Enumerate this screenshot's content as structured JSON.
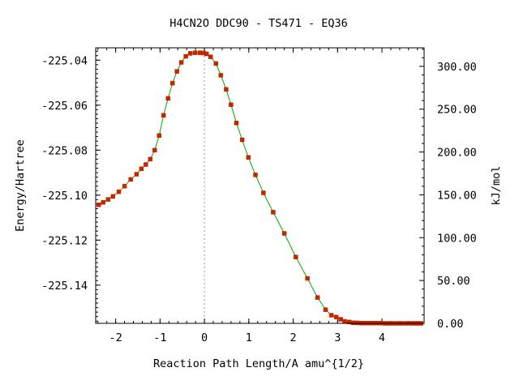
{
  "chart_data": {
    "type": "line",
    "title": "H4CN2O   DDC90 - TS471 - EQ36",
    "xlabel": "Reaction Path Length/A amu^{1/2}",
    "ylabel": "Energy/Hartree",
    "y2label": "kJ/mol",
    "xlim": [
      -2.45,
      4.95
    ],
    "ylim": [
      -225.157,
      -225.0345
    ],
    "y2lim": [
      0.0,
      321.6
    ],
    "xticks": [
      -2,
      -1,
      0,
      1,
      2,
      3,
      4
    ],
    "xtick_labels": [
      "-2",
      "-1",
      "0",
      "1",
      "2",
      "3",
      "4"
    ],
    "yticks": [
      -225.04,
      -225.06,
      -225.08,
      -225.1,
      -225.12,
      -225.14
    ],
    "ytick_labels": [
      "-225.04",
      "-225.06",
      "-225.08",
      "-225.10",
      "-225.12",
      "-225.14"
    ],
    "y2ticks": [
      0,
      50,
      100,
      150,
      200,
      250,
      300
    ],
    "y2tick_labels": [
      "0.00",
      "50.00",
      "100.00",
      "150.00",
      "200.00",
      "250.00",
      "300.00"
    ],
    "grid": false,
    "reference_line_x": 0,
    "colors": {
      "line": "#00aa00",
      "marker": "#cc2200",
      "reference": "#999999",
      "axis": "#000000"
    },
    "series": [
      {
        "x": [
          -2.38,
          -2.28,
          -2.17,
          -2.06,
          -1.93,
          -1.8,
          -1.66,
          -1.53,
          -1.42,
          -1.32,
          -1.22,
          -1.12,
          -1.02,
          -0.92,
          -0.82,
          -0.72,
          -0.62,
          -0.52,
          -0.42,
          -0.32,
          -0.21,
          -0.1,
          -0.02,
          0.05,
          0.14,
          0.26,
          0.37,
          0.49,
          0.6,
          0.72,
          0.85,
          0.99,
          1.15,
          1.33,
          1.55,
          1.8,
          2.06,
          2.32,
          2.55,
          2.73,
          2.86,
          2.97,
          3.07,
          3.16,
          3.26,
          3.35,
          3.44,
          3.53,
          3.62,
          3.71,
          3.8,
          3.89,
          3.98,
          4.07,
          4.16,
          4.25,
          4.35,
          4.45,
          4.55,
          4.65,
          4.73,
          4.8,
          4.88
        ],
        "y": [
          -225.1043,
          -225.1032,
          -225.1019,
          -225.1005,
          -225.0985,
          -225.096,
          -225.093,
          -225.0907,
          -225.0883,
          -225.0864,
          -225.084,
          -225.08,
          -225.0735,
          -225.0645,
          -225.057,
          -225.0502,
          -225.045,
          -225.041,
          -225.0383,
          -225.037,
          -225.0367,
          -225.0367,
          -225.0368,
          -225.0372,
          -225.0385,
          -225.0415,
          -225.0467,
          -225.053,
          -225.0598,
          -225.0679,
          -225.0754,
          -225.0832,
          -225.091,
          -225.099,
          -225.1076,
          -225.117,
          -225.1275,
          -225.137,
          -225.1455,
          -225.1509,
          -225.1534,
          -225.1542,
          -225.1552,
          -225.1561,
          -225.1564,
          -225.1567,
          -225.1568,
          -225.1569,
          -225.1569,
          -225.1569,
          -225.1569,
          -225.1569,
          -225.1569,
          -225.157,
          -225.157,
          -225.157,
          -225.157,
          -225.157,
          -225.157,
          -225.157,
          -225.157,
          -225.157,
          -225.157
        ]
      }
    ]
  }
}
